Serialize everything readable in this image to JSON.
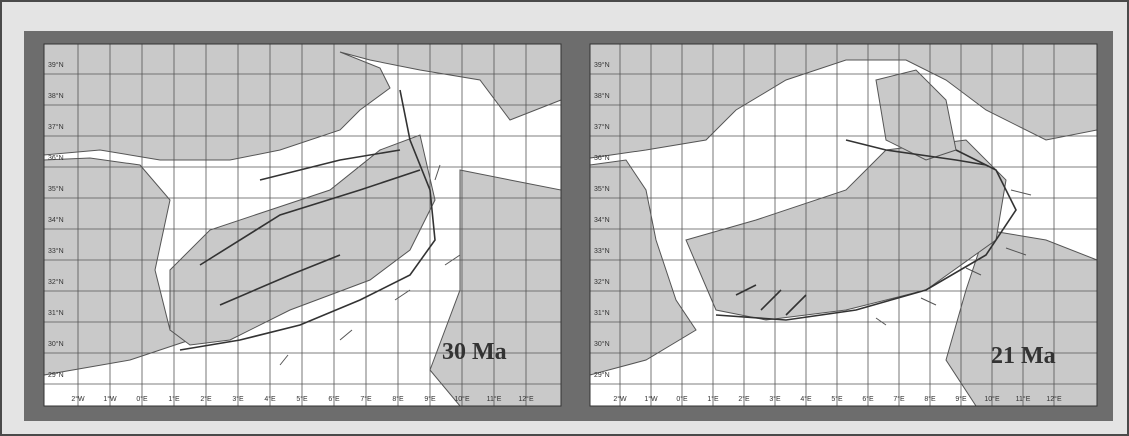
{
  "colors": {
    "land": "#c9c9c9",
    "sea": "#ffffff",
    "frame": "#6d6d6d",
    "outer": "#e4e4e4",
    "line": "#333333",
    "grid": "#555555"
  },
  "panels": [
    {
      "age_label": "30 Ma",
      "lat_labels": [
        "39°N",
        "38°N",
        "37°N",
        "36°N",
        "35°N",
        "34°N",
        "33°N",
        "32°N",
        "31°N",
        "30°N",
        "29°N"
      ],
      "lon_labels": [
        "2°W",
        "1°W",
        "0°E",
        "1°E",
        "2°E",
        "3°E",
        "4°E",
        "5°E",
        "6°E",
        "7°E",
        "8°E",
        "9°E",
        "10°E",
        "11°E",
        "12°E"
      ]
    },
    {
      "age_label": "21 Ma",
      "lat_labels": [
        "39°N",
        "38°N",
        "37°N",
        "36°N",
        "35°N",
        "34°N",
        "33°N",
        "32°N",
        "31°N",
        "30°N",
        "29°N"
      ],
      "lon_labels": [
        "2°W",
        "1°W",
        "0°E",
        "1°E",
        "2°E",
        "3°E",
        "4°E",
        "5°E",
        "6°E",
        "7°E",
        "8°E",
        "9°E",
        "10°E",
        "11°E",
        "12°E"
      ]
    }
  ]
}
